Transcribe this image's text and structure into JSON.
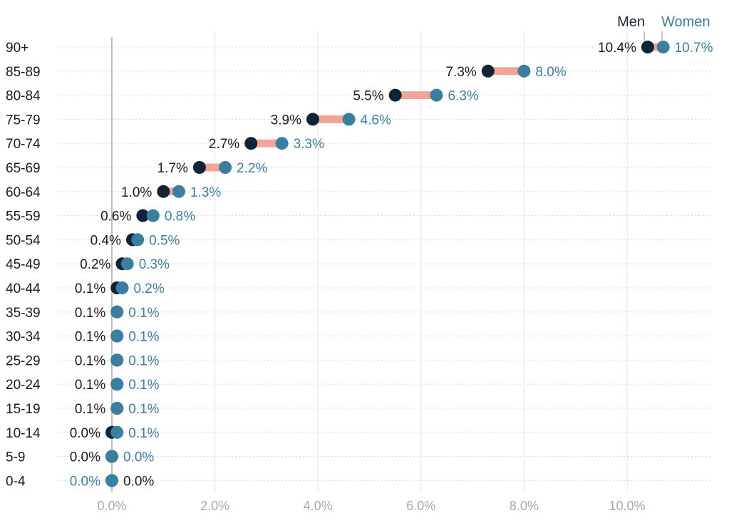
{
  "chart_data": {
    "type": "dumbbell",
    "categories": [
      "90+",
      "85-89",
      "80-84",
      "75-79",
      "70-74",
      "65-69",
      "60-64",
      "55-59",
      "50-54",
      "45-49",
      "40-44",
      "35-39",
      "30-34",
      "25-29",
      "20-24",
      "15-19",
      "10-14",
      "5-9",
      "0-4"
    ],
    "series": [
      {
        "name": "Men",
        "values": [
          10.4,
          7.3,
          5.5,
          3.9,
          2.7,
          1.7,
          1.0,
          0.6,
          0.4,
          0.2,
          0.1,
          0.1,
          0.1,
          0.1,
          0.1,
          0.1,
          0.0,
          0.0,
          0.0
        ],
        "labels": [
          "10.4%",
          "7.3%",
          "5.5%",
          "3.9%",
          "2.7%",
          "1.7%",
          "1.0%",
          "0.6%",
          "0.4%",
          "0.2%",
          "0.1%",
          "0.1%",
          "0.1%",
          "0.1%",
          "0.1%",
          "0.1%",
          "0.0%",
          "0.0%",
          "0.0%"
        ],
        "color": "#0f2438"
      },
      {
        "name": "Women",
        "values": [
          10.7,
          8.0,
          6.3,
          4.6,
          3.3,
          2.2,
          1.3,
          0.8,
          0.5,
          0.3,
          0.2,
          0.1,
          0.1,
          0.1,
          0.1,
          0.1,
          0.1,
          0.0,
          0.0
        ],
        "labels": [
          "10.7%",
          "8.0%",
          "6.3%",
          "4.6%",
          "3.3%",
          "2.2%",
          "1.3%",
          "0.8%",
          "0.5%",
          "0.3%",
          "0.2%",
          "0.1%",
          "0.1%",
          "0.1%",
          "0.1%",
          "0.1%",
          "0.1%",
          "0.0%",
          "0.0%"
        ],
        "color": "#3a7fa0"
      }
    ],
    "connector_color": "#f2a597",
    "x_ticks": [
      "0.0%",
      "2.0%",
      "4.0%",
      "6.0%",
      "8.0%",
      "10.0%"
    ],
    "x_tick_values": [
      0,
      2,
      4,
      6,
      8,
      10
    ],
    "xlim": [
      -1,
      11.8
    ],
    "grid": true,
    "legend": [
      "Men",
      "Women"
    ],
    "legend_position": "top-right"
  }
}
